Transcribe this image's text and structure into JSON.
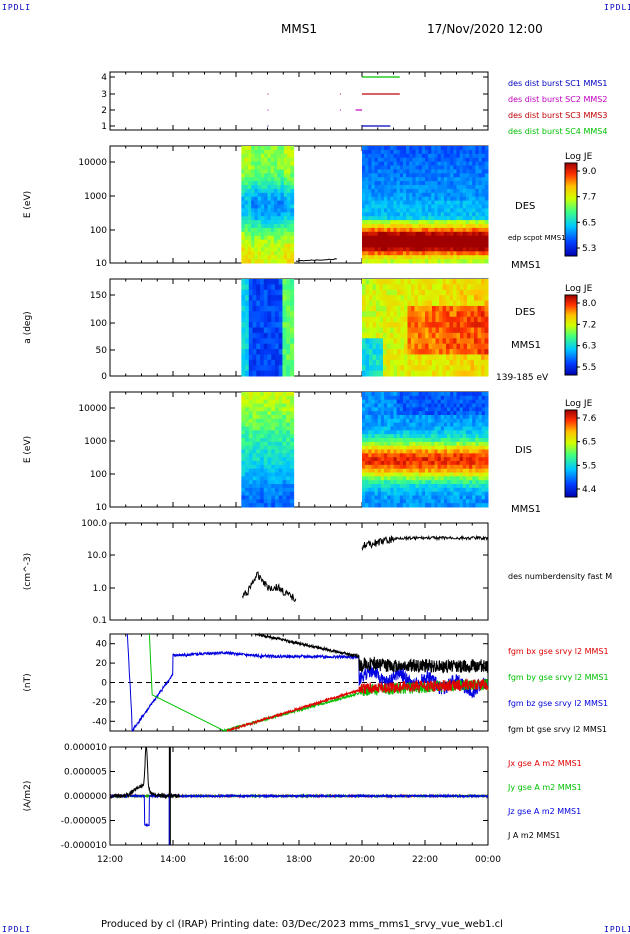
{
  "header": {
    "mission": "MMS1",
    "datetime": "17/Nov/2020 12:00",
    "corner_label": "IPDLI"
  },
  "footer": {
    "text": "Produced by cl (IRAP)   Printing date: 03/Dec/2023   mms_mms1_srvy_vue_web1.cl"
  },
  "time_axis": {
    "ticks": [
      "12:00",
      "14:00",
      "16:00",
      "18:00",
      "20:00",
      "22:00",
      "00:00"
    ]
  },
  "chart_data": [
    {
      "type": "scatter",
      "panel": "burst-availability",
      "y_ticks": [
        "1",
        "2",
        "3",
        "4"
      ],
      "legend": [
        {
          "label": "des dist burst SC1 MMS1",
          "color": "#0000c0"
        },
        {
          "label": "des dist burst SC2 MMS2",
          "color": "#c000c0"
        },
        {
          "label": "des dist burst SC3 MMS3",
          "color": "#c00000"
        },
        {
          "label": "des dist burst SC4 MMS4",
          "color": "#00c000"
        }
      ]
    },
    {
      "type": "heatmap",
      "panel": "des-energy-spectrogram",
      "ylabel": "E (eV)",
      "y_scale": "log",
      "y_ticks": [
        "10000",
        "1000",
        "100",
        "10"
      ],
      "species": "DES",
      "instrument": "MMS1",
      "overlay": "edp scpot MMS1",
      "colorbar": {
        "title": "Log JE",
        "ticks": [
          "9.0",
          "7.7",
          "6.5",
          "5.3"
        ]
      }
    },
    {
      "type": "heatmap",
      "panel": "des-pitch-angle",
      "ylabel": "a (deg)",
      "y_ticks": [
        "150",
        "100",
        "50",
        "0"
      ],
      "species": "DES",
      "instrument": "MMS1",
      "energy_band": "139-185 eV",
      "colorbar": {
        "title": "Log JE",
        "ticks": [
          "8.0",
          "7.2",
          "6.3",
          "5.5"
        ]
      }
    },
    {
      "type": "heatmap",
      "panel": "dis-energy-spectrogram",
      "ylabel": "E (eV)",
      "y_scale": "log",
      "y_ticks": [
        "10000",
        "1000",
        "100",
        "10"
      ],
      "species": "DIS",
      "instrument": "MMS1",
      "colorbar": {
        "title": "Log JE",
        "ticks": [
          "7.6",
          "6.5",
          "5.5",
          "4.4"
        ]
      }
    },
    {
      "type": "line",
      "panel": "density",
      "ylabel": "(cm^-3)",
      "y_scale": "log",
      "y_ticks": [
        "100.0",
        "10.0",
        "1.0",
        "0.1"
      ],
      "legend": [
        {
          "label": "des numberdensity fast M",
          "color": "#000000"
        }
      ]
    },
    {
      "type": "line",
      "panel": "magnetic-field",
      "ylabel": "(nT)",
      "y_ticks": [
        "40",
        "20",
        "0",
        "-20",
        "-40"
      ],
      "ylim": [
        -50,
        50
      ],
      "legend": [
        {
          "label": "fgm bx gse srvy l2 MMS1",
          "color": "#e00000"
        },
        {
          "label": "fgm by gse srvy l2 MMS1",
          "color": "#00c000"
        },
        {
          "label": "fgm bz gse srvy l2 MMS1",
          "color": "#0000e0"
        },
        {
          "label": "fgm bt gse srvy l2 MMS1",
          "color": "#000000"
        }
      ]
    },
    {
      "type": "line",
      "panel": "current-density",
      "ylabel": "(A/m2)",
      "y_ticks": [
        "0.000010",
        "0.000005",
        "0.000000",
        "-0.000005",
        "-0.000010"
      ],
      "ylim": [
        -1e-05,
        1e-05
      ],
      "legend": [
        {
          "label": "Jx gse A m2 MMS1",
          "color": "#e00000"
        },
        {
          "label": "Jy gse A m2 MMS1",
          "color": "#00c000"
        },
        {
          "label": "Jz gse A m2 MMS1",
          "color": "#0000e0"
        },
        {
          "label": "J A m2 MMS1",
          "color": "#000000"
        }
      ]
    }
  ]
}
